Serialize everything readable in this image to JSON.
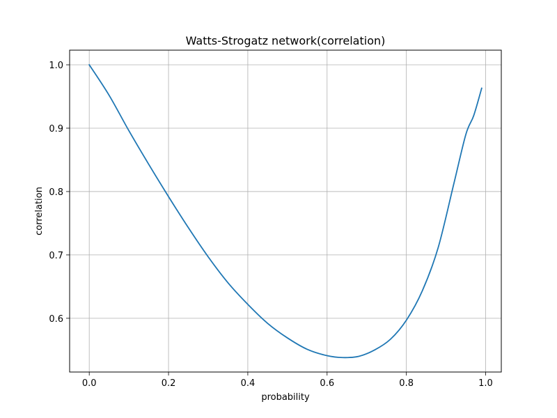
{
  "chart_data": {
    "type": "line",
    "title": "Watts-Strogatz network(correlation)",
    "xlabel": "probability",
    "ylabel": "correlation",
    "xlim": [
      -0.0495,
      1.0395
    ],
    "ylim": [
      0.5152,
      1.0231
    ],
    "xticks": [
      0.0,
      0.2,
      0.4,
      0.6,
      0.8,
      1.0
    ],
    "xtick_labels": [
      "0.0",
      "0.2",
      "0.4",
      "0.6",
      "0.8",
      "1.0"
    ],
    "yticks": [
      0.6,
      0.7,
      0.8,
      0.9,
      1.0
    ],
    "ytick_labels": [
      "0.6",
      "0.7",
      "0.8",
      "0.9",
      "1.0"
    ],
    "grid": true,
    "series_color": "#1f77b4",
    "series": [
      {
        "x": [
          0.0,
          0.05,
          0.1,
          0.15,
          0.2,
          0.25,
          0.3,
          0.35,
          0.4,
          0.45,
          0.5,
          0.55,
          0.6,
          0.64,
          0.68,
          0.72,
          0.76,
          0.8,
          0.84,
          0.88,
          0.92,
          0.95,
          0.97,
          0.99
        ],
        "y": [
          1.0,
          0.952,
          0.896,
          0.843,
          0.792,
          0.743,
          0.697,
          0.656,
          0.622,
          0.592,
          0.569,
          0.551,
          0.541,
          0.538,
          0.54,
          0.55,
          0.567,
          0.597,
          0.643,
          0.711,
          0.813,
          0.89,
          0.92,
          0.963
        ]
      }
    ]
  }
}
